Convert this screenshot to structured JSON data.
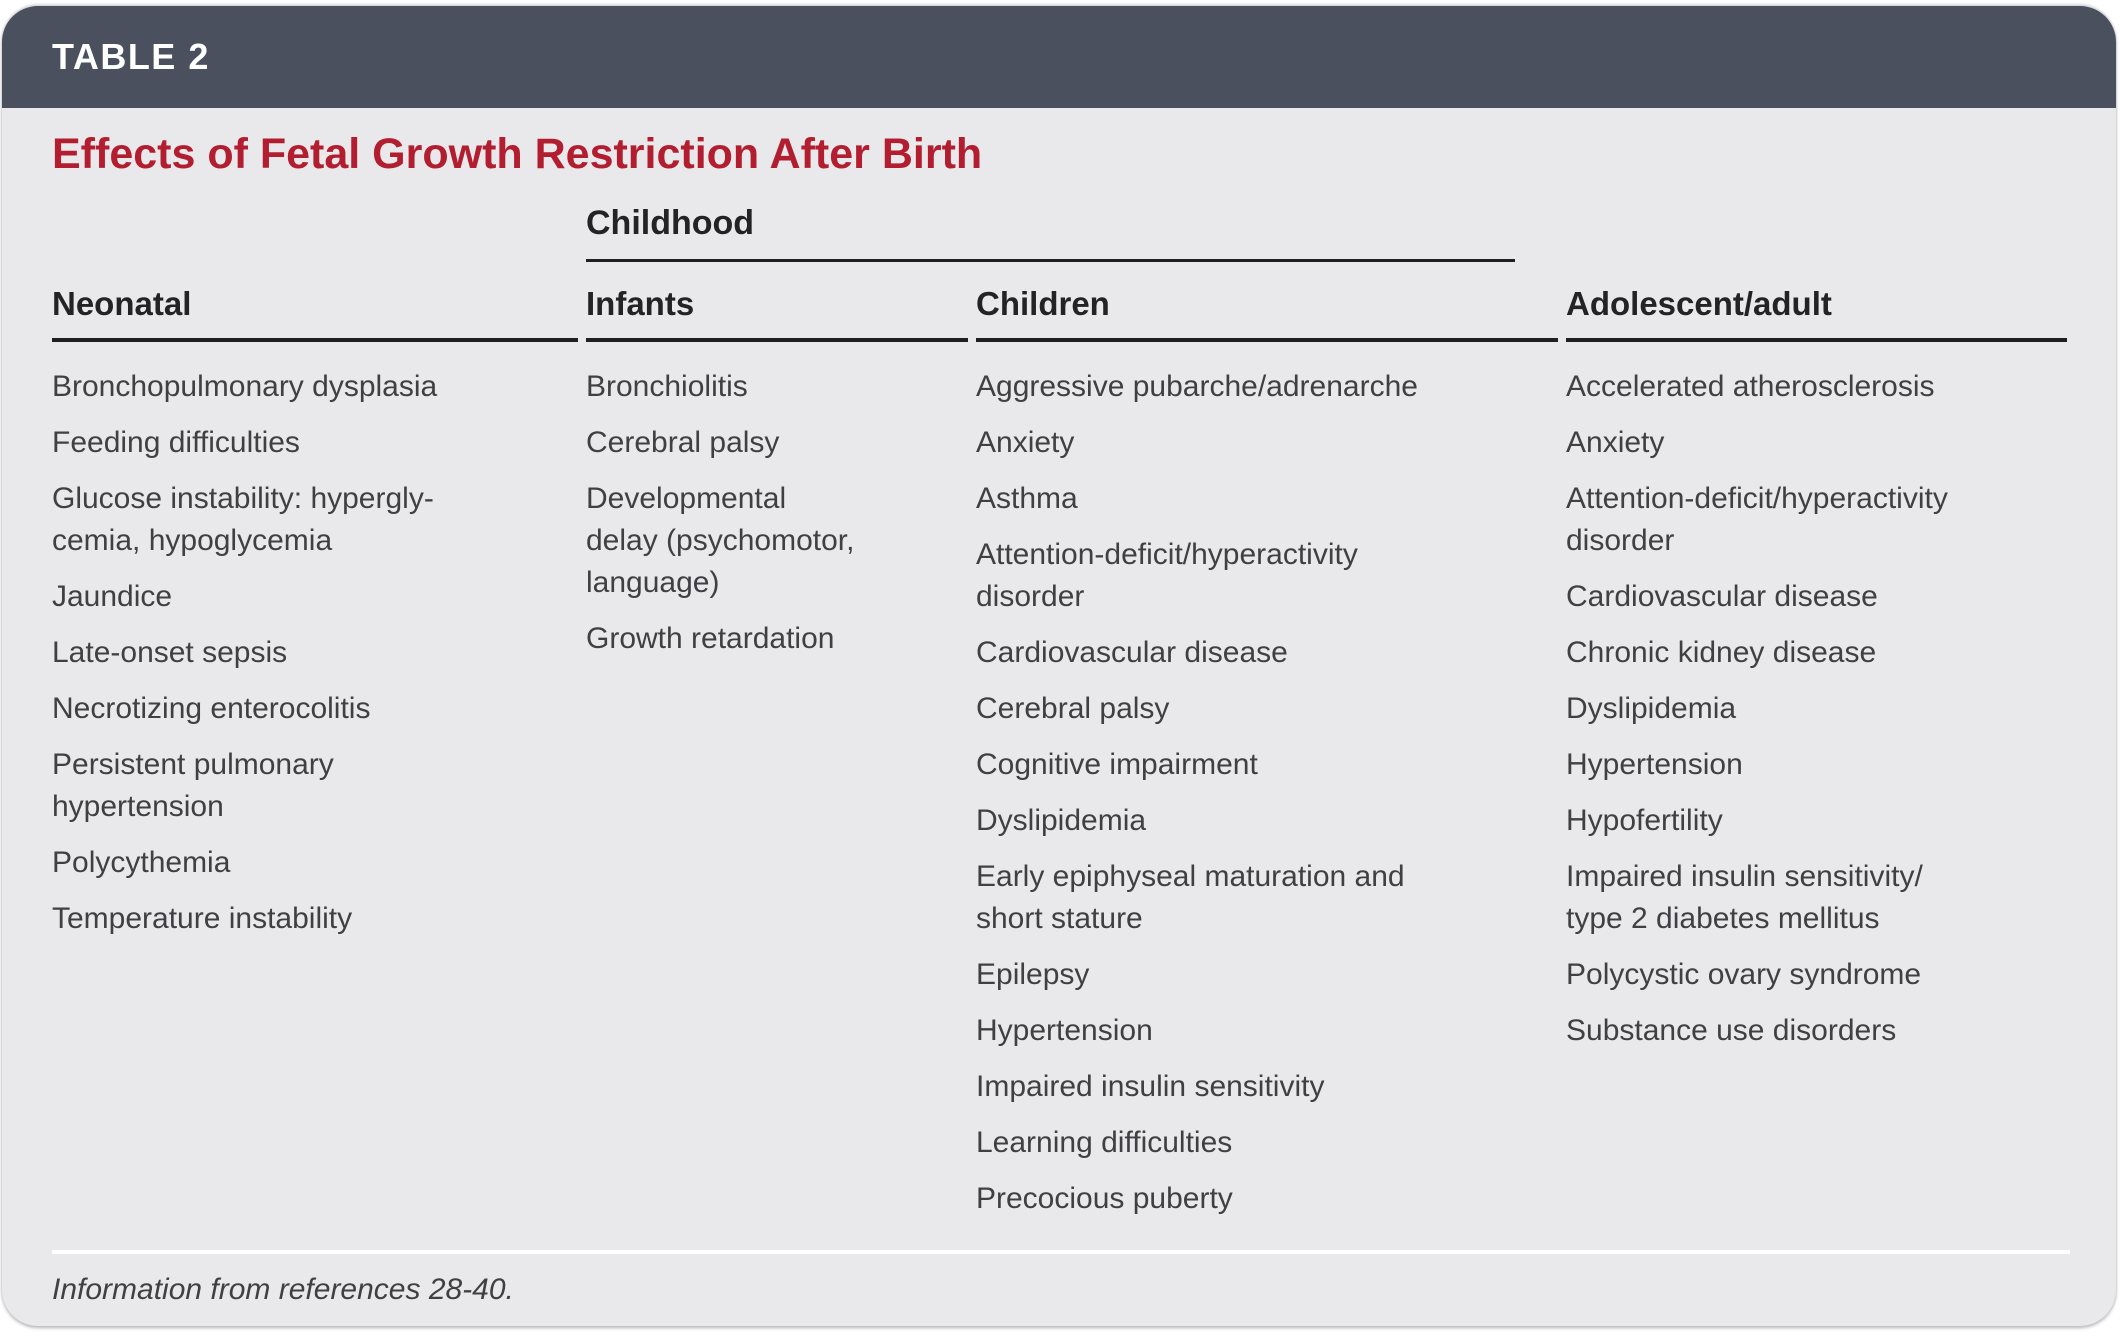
{
  "table_label": "TABLE 2",
  "title": "Effects of Fetal Growth Restriction After Birth",
  "group_header": "Childhood",
  "columns": [
    {
      "header": "Neonatal",
      "items": [
        "Bronchopulmonary dysplasia",
        "Feeding difficulties",
        "Glucose instability: hypergly-\ncemia, hypoglycemia",
        "Jaundice",
        "Late-onset sepsis",
        "Necrotizing enterocolitis",
        "Persistent pulmonary\nhypertension",
        "Polycythemia",
        "Temperature instability"
      ]
    },
    {
      "header": "Infants",
      "items": [
        "Bronchiolitis",
        "Cerebral palsy",
        "Developmental\ndelay (psychomotor,\nlanguage)",
        "Growth retardation"
      ]
    },
    {
      "header": "Children",
      "items": [
        "Aggressive pubarche/adrenarche",
        "Anxiety",
        "Asthma",
        "Attention-deficit/hyperactivity\ndisorder",
        "Cardiovascular disease",
        "Cerebral palsy",
        "Cognitive impairment",
        "Dyslipidemia",
        "Early epiphyseal maturation and\nshort stature",
        "Epilepsy",
        "Hypertension",
        "Impaired insulin sensitivity",
        "Learning difficulties",
        "Precocious puberty"
      ]
    },
    {
      "header": "Adolescent/adult",
      "items": [
        "Accelerated atherosclerosis",
        "Anxiety",
        "Attention-deficit/hyperactivity\ndisorder",
        "Cardiovascular disease",
        "Chronic kidney disease",
        "Dyslipidemia",
        "Hypertension",
        "Hypofertility",
        "Impaired insulin sensitivity/\ntype 2 diabetes mellitus",
        "Polycystic ovary syndrome",
        "Substance use disorders"
      ]
    }
  ],
  "footnote": "Information from references 28-40.",
  "colors": {
    "header_bar": "#4A505E",
    "title_red": "#B21E30",
    "card_bg": "#E9E9EB",
    "rule": "#1F1F22",
    "heading_text": "#232327",
    "body_text": "#3F3F44"
  }
}
